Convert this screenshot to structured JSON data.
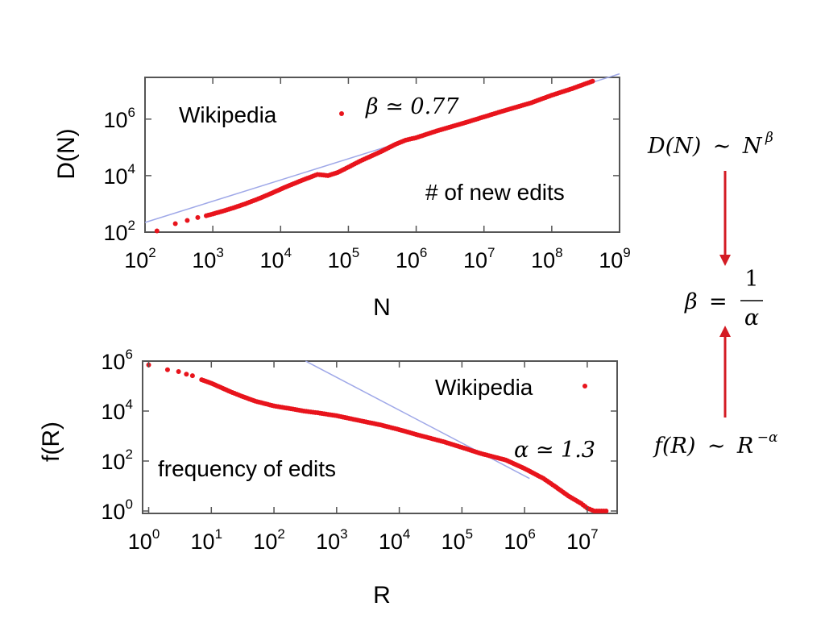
{
  "chart_data": [
    {
      "type": "scatter",
      "xlabel": "N",
      "ylabel": "D(N)",
      "xscale": "log",
      "yscale": "log",
      "xlim": [
        100,
        1000000000
      ],
      "ylim": [
        100,
        30000000
      ],
      "xtick_base": "10",
      "xtick_exponents": [
        "2",
        "3",
        "4",
        "5",
        "6",
        "7",
        "8",
        "9"
      ],
      "ytick_base": "10",
      "ytick_exponents": [
        "2",
        "4",
        "6"
      ],
      "grid": false,
      "legend": {
        "label": "Wikipedia",
        "placement": "top-left",
        "fit_label": "β ≃ 0.77"
      },
      "annotation": "# of new edits",
      "series": [
        {
          "name": "Wikipedia",
          "color": "#e8141c",
          "x": [
            150,
            280,
            420,
            600,
            800,
            1000,
            1500,
            2000,
            3000,
            5000,
            8000,
            12000,
            20000,
            35000,
            50000,
            70000,
            100000,
            150000,
            200000,
            300000,
            500000,
            700000,
            1000000,
            2000000,
            5000000,
            10000000,
            20000000,
            50000000,
            100000000,
            200000000,
            400000000
          ],
          "y": [
            110,
            200,
            260,
            330,
            380,
            440,
            580,
            720,
            1000,
            1600,
            2600,
            4000,
            6600,
            11000,
            10000,
            13000,
            20000,
            33000,
            45000,
            70000,
            130000,
            180000,
            220000,
            380000,
            720000,
            1200000,
            2000000,
            3800000,
            7000000,
            12000000,
            22000000
          ]
        }
      ],
      "fit_line": {
        "color": "#9fa8e8",
        "x": [
          100,
          1000000000
        ],
        "y": [
          220,
          40000000
        ]
      }
    },
    {
      "type": "scatter",
      "xlabel": "R",
      "ylabel": "f(R)",
      "xscale": "log",
      "yscale": "log",
      "xlim": [
        0.8,
        30000000
      ],
      "ylim": [
        0.8,
        1000000
      ],
      "xtick_base": "10",
      "xtick_exponents": [
        "0",
        "1",
        "2",
        "3",
        "4",
        "5",
        "6",
        "7"
      ],
      "ytick_base": "10",
      "ytick_exponents": [
        "0",
        "2",
        "4",
        "6"
      ],
      "grid": false,
      "legend": {
        "label": "Wikipedia",
        "placement": "top-right",
        "fit_label": "α ≃ 1.3"
      },
      "annotation": "frequency of edits",
      "series": [
        {
          "name": "Wikipedia",
          "color": "#e8141c",
          "x": [
            1,
            2,
            3,
            4,
            5,
            7,
            10,
            20,
            30,
            50,
            100,
            200,
            300,
            500,
            1000,
            2000,
            5000,
            10000,
            20000,
            50000,
            100000,
            200000,
            500000,
            1000000,
            2000000,
            3000000,
            5000000,
            8000000,
            10000000,
            13000000,
            20000000
          ],
          "y": [
            700000,
            450000,
            380000,
            300000,
            260000,
            180000,
            130000,
            60000,
            40000,
            25000,
            16000,
            12000,
            10000,
            8500,
            6500,
            4500,
            2800,
            1800,
            1100,
            600,
            350,
            200,
            110,
            50,
            20,
            10,
            4,
            2,
            1.3,
            1,
            1
          ]
        }
      ],
      "fit_line": {
        "color": "#9fa8e8",
        "x": [
          320,
          1200000
        ],
        "y": [
          1000000,
          20
        ]
      }
    }
  ],
  "side_panel": {
    "top_formula": {
      "lhs": "D(N)",
      "rel": "∼",
      "base": "N",
      "exp": "β"
    },
    "middle_formula": {
      "lhs": "β",
      "rel": "=",
      "num": "1",
      "den": "α"
    },
    "bottom_formula": {
      "lhs": "f(R)",
      "rel": "∼",
      "base": "R",
      "exp": "−α"
    },
    "arrow_color": "#d41c24"
  }
}
